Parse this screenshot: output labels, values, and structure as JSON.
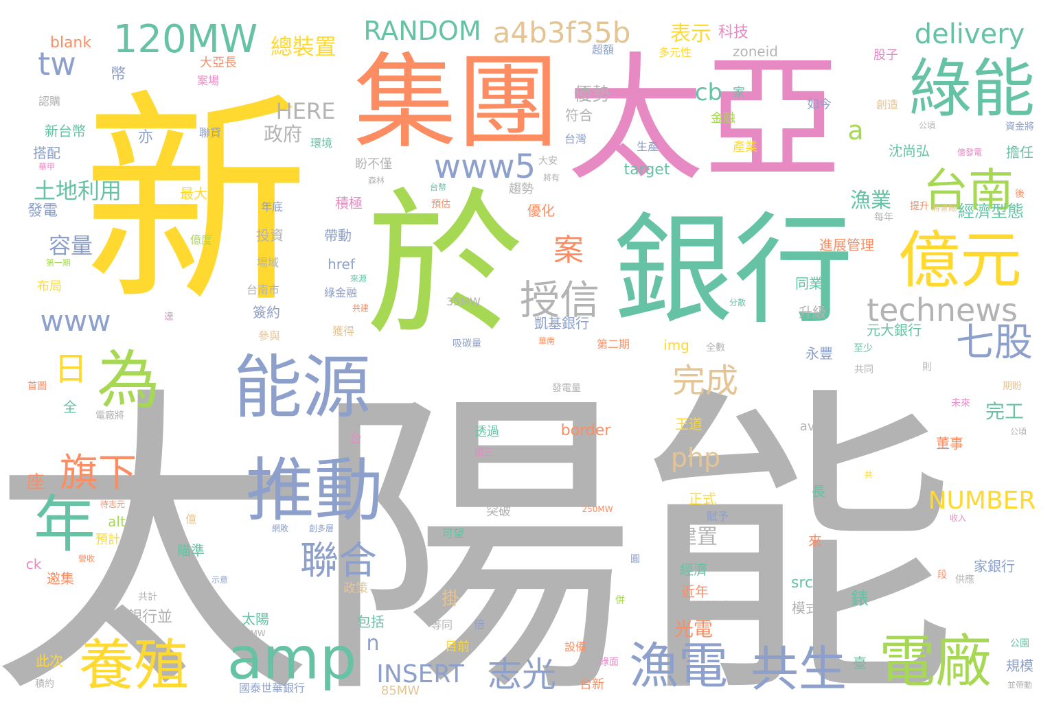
{
  "words": [
    {
      "text": "太陽能",
      "color": "#b3b3b3"
    },
    {
      "text": "新",
      "color": "#ffd92f"
    },
    {
      "text": "太亞",
      "color": "#e78ac3"
    },
    {
      "text": "集團",
      "color": "#fc8d62"
    },
    {
      "text": "於",
      "color": "#a6d854"
    },
    {
      "text": "銀行",
      "color": "#66c2a5"
    },
    {
      "text": "綠能",
      "color": "#66c2a5"
    },
    {
      "text": "億元",
      "color": "#ffd92f"
    },
    {
      "text": "能源",
      "color": "#8da0cb"
    },
    {
      "text": "推動",
      "color": "#8da0cb"
    },
    {
      "text": "為",
      "color": "#a6d854"
    },
    {
      "text": "年",
      "color": "#66c2a5"
    },
    {
      "text": "養殖",
      "color": "#ffd92f"
    },
    {
      "text": "amp",
      "color": "#66c2a5"
    },
    {
      "text": "電廠",
      "color": "#a6d854"
    },
    {
      "text": "technews",
      "color": "#b3b3b3"
    },
    {
      "text": "漁電",
      "color": "#8da0cb"
    },
    {
      "text": "共生",
      "color": "#8da0cb"
    },
    {
      "text": "120MW",
      "color": "#66c2a5"
    },
    {
      "text": "a4b3f35b",
      "color": "#e5c494"
    },
    {
      "text": "delivery",
      "color": "#66c2a5"
    },
    {
      "text": "RANDOM",
      "color": "#66c2a5"
    },
    {
      "text": "www5",
      "color": "#8da0cb"
    },
    {
      "text": "台南",
      "color": "#a6d854"
    },
    {
      "text": "授信",
      "color": "#b3b3b3"
    },
    {
      "text": "七股",
      "color": "#8da0cb"
    },
    {
      "text": "www",
      "color": "#8da0cb"
    },
    {
      "text": "旗下",
      "color": "#fc8d62"
    },
    {
      "text": "聯合",
      "color": "#8da0cb"
    },
    {
      "text": "志光",
      "color": "#8da0cb"
    },
    {
      "text": "完成",
      "color": "#e5c494"
    },
    {
      "text": "日",
      "color": "#ffd92f"
    },
    {
      "text": "案",
      "color": "#fc8d62"
    },
    {
      "text": "tw",
      "color": "#8da0cb"
    },
    {
      "text": "php",
      "color": "#e5c494"
    },
    {
      "text": "NUMBER",
      "color": "#ffd92f"
    },
    {
      "text": "INSERT",
      "color": "#8da0cb"
    },
    {
      "text": "HERE",
      "color": "#b3b3b3"
    },
    {
      "text": "a",
      "color": "#a6d854"
    },
    {
      "text": "cb",
      "color": "#66c2a5"
    },
    {
      "text": "n",
      "color": "#8da0cb"
    },
    {
      "text": "土地利用",
      "color": "#66c2a5"
    },
    {
      "text": "容量",
      "color": "#8da0cb"
    },
    {
      "text": "總裝置",
      "color": "#ffd92f"
    },
    {
      "text": "表示",
      "color": "#ffd92f"
    },
    {
      "text": "科技",
      "color": "#e78ac3"
    },
    {
      "text": "優勢",
      "color": "#b3b3b3"
    },
    {
      "text": "政府",
      "color": "#b3b3b3"
    },
    {
      "text": "建置",
      "color": "#b3b3b3"
    },
    {
      "text": "漁業",
      "color": "#66c2a5"
    },
    {
      "text": "經濟型態",
      "color": "#66c2a5"
    },
    {
      "text": "完工",
      "color": "#66c2a5"
    },
    {
      "text": "光電",
      "color": "#fc8d62"
    },
    {
      "text": "座",
      "color": "#fc8d62"
    },
    {
      "text": "掛",
      "color": "#e5c494"
    },
    {
      "text": "錶",
      "color": "#66c2a5"
    },
    {
      "text": "blank",
      "color": "#fc8d62"
    },
    {
      "text": "zoneid",
      "color": "#b3b3b3"
    },
    {
      "text": "target",
      "color": "#66c2a5"
    },
    {
      "text": "border",
      "color": "#fc8d62"
    },
    {
      "text": "href",
      "color": "#8da0cb"
    },
    {
      "text": "img",
      "color": "#ffd92f"
    },
    {
      "text": "src",
      "color": "#66c2a5"
    },
    {
      "text": "alt",
      "color": "#a6d854"
    },
    {
      "text": "ck",
      "color": "#e78ac3"
    },
    {
      "text": "avw",
      "color": "#b3b3b3"
    },
    {
      "text": "35MW",
      "color": "#b3b3b3"
    },
    {
      "text": "250MW",
      "color": "#fc8d62"
    },
    {
      "text": "76MW",
      "color": "#b3b3b3"
    },
    {
      "text": "85MW",
      "color": "#e5c494"
    },
    {
      "text": "大亞長",
      "color": "#fc8d62"
    },
    {
      "text": "幣",
      "color": "#8da0cb"
    },
    {
      "text": "案場",
      "color": "#e78ac3"
    },
    {
      "text": "認購",
      "color": "#b3b3b3"
    },
    {
      "text": "新台幣",
      "color": "#66c2a5"
    },
    {
      "text": "亦",
      "color": "#8da0cb"
    },
    {
      "text": "聯貸",
      "color": "#8da0cb"
    },
    {
      "text": "環境",
      "color": "#66c2a5"
    },
    {
      "text": "搭配",
      "color": "#8da0cb"
    },
    {
      "text": "華甲",
      "color": "#e78ac3"
    },
    {
      "text": "發電",
      "color": "#8da0cb"
    },
    {
      "text": "最大",
      "color": "#ffd92f"
    },
    {
      "text": "年底",
      "color": "#8da0cb"
    },
    {
      "text": "積極",
      "color": "#e78ac3"
    },
    {
      "text": "投資",
      "color": "#b3b3b3"
    },
    {
      "text": "帶動",
      "color": "#8da0cb"
    },
    {
      "text": "億度",
      "color": "#a6d854"
    },
    {
      "text": "第一期",
      "color": "#a6d854"
    },
    {
      "text": "場域",
      "color": "#b3b3b3"
    },
    {
      "text": "布局",
      "color": "#ffd92f"
    },
    {
      "text": "台南市",
      "color": "#b3b3b3"
    },
    {
      "text": "來源",
      "color": "#66c2a5"
    },
    {
      "text": "綠金融",
      "color": "#8da0cb"
    },
    {
      "text": "共建",
      "color": "#fc8d62"
    },
    {
      "text": "簽約",
      "color": "#8da0cb"
    },
    {
      "text": "獲得",
      "color": "#e5c494"
    },
    {
      "text": "達",
      "color": "#e78ac3"
    },
    {
      "text": "參與",
      "color": "#e5c494"
    },
    {
      "text": "首圖",
      "color": "#fc8d62"
    },
    {
      "text": "全",
      "color": "#66c2a5"
    },
    {
      "text": "電廠將",
      "color": "#b3b3b3"
    },
    {
      "text": "台",
      "color": "#e78ac3"
    },
    {
      "text": "待志元",
      "color": "#fc8d62"
    },
    {
      "text": "億",
      "color": "#e5c494"
    },
    {
      "text": "預計",
      "color": "#ffd92f"
    },
    {
      "text": "瞄準",
      "color": "#66c2a5"
    },
    {
      "text": "營收",
      "color": "#fc8d62"
    },
    {
      "text": "邀集",
      "color": "#fc8d62"
    },
    {
      "text": "示意",
      "color": "#8da0cb"
    },
    {
      "text": "共計",
      "color": "#b3b3b3"
    },
    {
      "text": "銀行並",
      "color": "#b3b3b3"
    },
    {
      "text": "太陽",
      "color": "#66c2a5"
    },
    {
      "text": "包括",
      "color": "#66c2a5"
    },
    {
      "text": "此次",
      "color": "#ffd92f"
    },
    {
      "text": "積約",
      "color": "#b3b3b3"
    },
    {
      "text": "國泰世華銀行",
      "color": "#8da0cb"
    },
    {
      "text": "網敗",
      "color": "#8da0cb"
    },
    {
      "text": "創多層",
      "color": "#8da0cb"
    },
    {
      "text": "政策",
      "color": "#e5c494"
    },
    {
      "text": "超額",
      "color": "#8da0cb"
    },
    {
      "text": "多元性",
      "color": "#ffd92f"
    },
    {
      "text": "股子",
      "color": "#e78ac3"
    },
    {
      "text": "家",
      "color": "#66c2a5"
    },
    {
      "text": "如今",
      "color": "#8da0cb"
    },
    {
      "text": "創造",
      "color": "#e5c494"
    },
    {
      "text": "公頃",
      "color": "#b3b3b3"
    },
    {
      "text": "資金將",
      "color": "#8da0cb"
    },
    {
      "text": "符合",
      "color": "#b3b3b3"
    },
    {
      "text": "金融",
      "color": "#a6d854"
    },
    {
      "text": "台灣",
      "color": "#8da0cb"
    },
    {
      "text": "產業",
      "color": "#ffd92f"
    },
    {
      "text": "沈尚弘",
      "color": "#66c2a5"
    },
    {
      "text": "億發電",
      "color": "#e78ac3"
    },
    {
      "text": "擔任",
      "color": "#66c2a5"
    },
    {
      "text": "盼不僅",
      "color": "#b3b3b3"
    },
    {
      "text": "森林",
      "color": "#b3b3b3"
    },
    {
      "text": "大安",
      "color": "#b3b3b3"
    },
    {
      "text": "將有",
      "color": "#b3b3b3"
    },
    {
      "text": "生產",
      "color": "#8da0cb"
    },
    {
      "text": "趨勢",
      "color": "#b3b3b3"
    },
    {
      "text": "台幣",
      "color": "#66c2a5"
    },
    {
      "text": "預估",
      "color": "#fc8d62"
    },
    {
      "text": "優化",
      "color": "#fc8d62"
    },
    {
      "text": "提升",
      "color": "#fc8d62"
    },
    {
      "text": "將會廠",
      "color": "#e5c494"
    },
    {
      "text": "後",
      "color": "#fc8d62"
    },
    {
      "text": "每年",
      "color": "#b3b3b3"
    },
    {
      "text": "進展管理",
      "color": "#fc8d62"
    },
    {
      "text": "同業",
      "color": "#66c2a5"
    },
    {
      "text": "升級",
      "color": "#b3b3b3"
    },
    {
      "text": "分散",
      "color": "#66c2a5"
    },
    {
      "text": "凱基銀行",
      "color": "#8da0cb"
    },
    {
      "text": "元大銀行",
      "color": "#66c2a5"
    },
    {
      "text": "華南",
      "color": "#fc8d62"
    },
    {
      "text": "第二期",
      "color": "#fc8d62"
    },
    {
      "text": "吸碳量",
      "color": "#8da0cb"
    },
    {
      "text": "全數",
      "color": "#b3b3b3"
    },
    {
      "text": "永豐",
      "color": "#8da0cb"
    },
    {
      "text": "至少",
      "color": "#66c2a5"
    },
    {
      "text": "共同",
      "color": "#b3b3b3"
    },
    {
      "text": "則",
      "color": "#b3b3b3"
    },
    {
      "text": "發電量",
      "color": "#b3b3b3"
    },
    {
      "text": "期盼",
      "color": "#e5c494"
    },
    {
      "text": "未來",
      "color": "#e78ac3"
    },
    {
      "text": "王道",
      "color": "#ffd92f"
    },
    {
      "text": "透過",
      "color": "#66c2a5"
    },
    {
      "text": "國三",
      "color": "#e78ac3"
    },
    {
      "text": "公頃",
      "color": "#b3b3b3"
    },
    {
      "text": "董事",
      "color": "#fc8d62"
    },
    {
      "text": "共",
      "color": "#ffd92f"
    },
    {
      "text": "長",
      "color": "#66c2a5"
    },
    {
      "text": "突破",
      "color": "#b3b3b3"
    },
    {
      "text": "正式",
      "color": "#ffd92f"
    },
    {
      "text": "賦予",
      "color": "#8da0cb"
    },
    {
      "text": "可望",
      "color": "#66c2a5"
    },
    {
      "text": "收入",
      "color": "#e78ac3"
    },
    {
      "text": "來",
      "color": "#fc8d62"
    },
    {
      "text": "經濟",
      "color": "#66c2a5"
    },
    {
      "text": "近年",
      "color": "#fc8d62"
    },
    {
      "text": "圓",
      "color": "#8da0cb"
    },
    {
      "text": "段",
      "color": "#fc8d62"
    },
    {
      "text": "供應",
      "color": "#b3b3b3"
    },
    {
      "text": "家銀行",
      "color": "#8da0cb"
    },
    {
      "text": "計畫",
      "color": "#b3b3b3"
    },
    {
      "text": "模式",
      "color": "#b3b3b3"
    },
    {
      "text": "併",
      "color": "#a6d854"
    },
    {
      "text": "等同",
      "color": "#b3b3b3"
    },
    {
      "text": "倍",
      "color": "#8da0cb"
    },
    {
      "text": "目前",
      "color": "#ffd92f"
    },
    {
      "text": "設備",
      "color": "#fc8d62"
    },
    {
      "text": "綠面",
      "color": "#e78ac3"
    },
    {
      "text": "台新",
      "color": "#fc8d62"
    },
    {
      "text": "臺",
      "color": "#66c2a5"
    },
    {
      "text": "規模",
      "color": "#8da0cb"
    },
    {
      "text": "公園",
      "color": "#66c2a5"
    },
    {
      "text": "並帶動",
      "color": "#b3b3b3"
    }
  ]
}
